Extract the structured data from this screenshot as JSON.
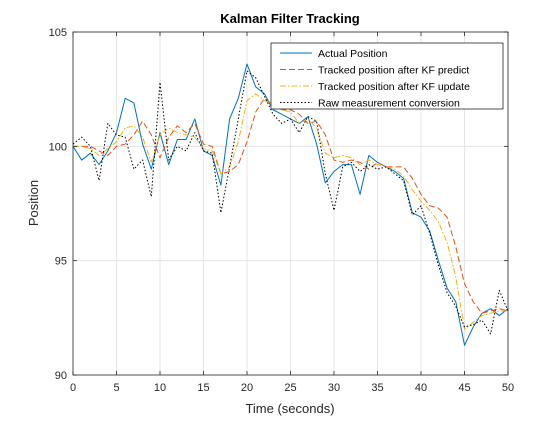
{
  "chart_data": {
    "type": "line",
    "title": "Kalman Filter Tracking",
    "xlabel": "Time (seconds)",
    "ylabel": "Position",
    "xlim": [
      0,
      50
    ],
    "ylim": [
      90,
      105
    ],
    "xticks": [
      0,
      5,
      10,
      15,
      20,
      25,
      30,
      35,
      40,
      45,
      50
    ],
    "yticks": [
      90,
      95,
      100,
      105
    ],
    "grid": true,
    "legend_location": "top-right",
    "x": [
      0,
      1,
      2,
      3,
      4,
      5,
      6,
      7,
      8,
      9,
      10,
      11,
      12,
      13,
      14,
      15,
      16,
      17,
      18,
      19,
      20,
      21,
      22,
      23,
      24,
      25,
      26,
      27,
      28,
      29,
      30,
      31,
      32,
      33,
      34,
      35,
      36,
      37,
      38,
      39,
      40,
      41,
      42,
      43,
      44,
      45,
      46,
      47,
      48,
      49,
      50
    ],
    "series": [
      {
        "name": "Actual Position",
        "color": "#0072BD",
        "dash": "solid",
        "values": [
          100.0,
          99.4,
          99.7,
          99.2,
          99.8,
          100.6,
          102.1,
          101.9,
          100.1,
          99.0,
          100.6,
          99.2,
          100.3,
          100.3,
          101.2,
          99.8,
          99.6,
          98.3,
          101.2,
          102.1,
          103.6,
          102.6,
          102.3,
          101.6,
          101.4,
          101.2,
          101.0,
          101.3,
          100.1,
          98.4,
          98.9,
          99.2,
          99.2,
          97.9,
          99.6,
          99.3,
          99.1,
          98.9,
          98.6,
          97.1,
          96.9,
          96.3,
          95.0,
          93.8,
          93.2,
          91.3,
          92.1,
          92.7,
          92.9,
          92.6,
          92.9
        ]
      },
      {
        "name": "Tracked position after KF predict",
        "color": "#D95319",
        "dash": "6,3",
        "values": [
          100.0,
          100.0,
          100.0,
          99.8,
          99.6,
          100.0,
          100.1,
          100.5,
          101.1,
          100.5,
          99.5,
          100.4,
          100.9,
          100.6,
          101.0,
          100.1,
          100.0,
          98.8,
          98.9,
          99.2,
          100.2,
          101.5,
          102.1,
          101.8,
          101.6,
          101.6,
          101.4,
          101.0,
          101.1,
          100.5,
          99.4,
          99.3,
          99.4,
          99.3,
          99.0,
          99.3,
          99.1,
          99.1,
          99.1,
          98.6,
          97.9,
          97.4,
          97.3,
          96.9,
          95.6,
          94.0,
          93.2,
          92.7,
          92.8,
          92.9,
          92.8
        ]
      },
      {
        "name": "Tracked position after KF update",
        "color": "#EDB120",
        "dash": "6,2,1.5,2",
        "values": [
          100.0,
          100.0,
          99.9,
          99.6,
          99.9,
          100.2,
          100.8,
          100.9,
          100.4,
          99.3,
          100.5,
          100.8,
          100.6,
          100.5,
          100.4,
          99.9,
          99.8,
          98.8,
          99.1,
          100.2,
          102.0,
          102.3,
          102.0,
          101.8,
          101.6,
          101.5,
          101.0,
          101.2,
          100.8,
          99.7,
          99.5,
          99.6,
          99.5,
          99.2,
          99.4,
          99.2,
          99.1,
          99.0,
          98.7,
          98.1,
          97.6,
          97.2,
          96.7,
          95.8,
          94.3,
          92.0,
          92.3,
          92.6,
          92.7,
          92.8,
          92.8
        ]
      },
      {
        "name": "Raw measurement conversion",
        "color": "#000000",
        "dash": "1.5,2",
        "values": [
          100.1,
          100.4,
          100.0,
          98.5,
          101.0,
          100.5,
          100.4,
          99.0,
          99.4,
          97.8,
          102.8,
          99.4,
          100.0,
          99.8,
          100.6,
          99.8,
          99.7,
          97.1,
          99.1,
          101.2,
          103.3,
          103.0,
          102.2,
          101.4,
          101.0,
          101.2,
          100.6,
          101.3,
          101.1,
          98.8,
          97.2,
          99.1,
          99.3,
          98.9,
          99.2,
          99.0,
          99.1,
          98.8,
          98.5,
          97.0,
          97.4,
          96.2,
          94.8,
          93.6,
          93.0,
          92.1,
          92.2,
          92.4,
          91.8,
          93.7,
          92.8
        ]
      }
    ]
  }
}
